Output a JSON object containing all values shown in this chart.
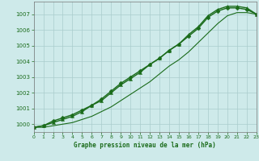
{
  "title": "Graphe pression niveau de la mer (hPa)",
  "background_color": "#ceeaea",
  "grid_color": "#aacccc",
  "line_color": "#1a6b1a",
  "xlim": [
    0,
    23
  ],
  "ylim": [
    999.5,
    1007.8
  ],
  "yticks": [
    1000,
    1001,
    1002,
    1003,
    1004,
    1005,
    1006,
    1007
  ],
  "xticks": [
    0,
    1,
    2,
    3,
    4,
    5,
    6,
    7,
    8,
    9,
    10,
    11,
    12,
    13,
    14,
    15,
    16,
    17,
    18,
    19,
    20,
    21,
    22,
    23
  ],
  "series": [
    {
      "x": [
        0,
        1,
        2,
        3,
        4,
        5,
        6,
        7,
        8,
        9,
        10,
        11,
        12,
        13,
        14,
        15,
        16,
        17,
        18,
        19,
        20,
        21,
        22,
        23
      ],
      "y": [
        999.8,
        999.9,
        1000.2,
        1000.4,
        1000.6,
        1000.9,
        1001.2,
        1001.6,
        1002.1,
        1002.6,
        1003.0,
        1003.4,
        1003.8,
        1004.2,
        1004.7,
        1005.1,
        1005.6,
        1006.1,
        1006.8,
        1007.2,
        1007.4,
        1007.4,
        1007.3,
        1007.0
      ],
      "marker": "D",
      "markersize": 2.5,
      "linewidth": 1.0
    },
    {
      "x": [
        0,
        1,
        2,
        3,
        4,
        5,
        6,
        7,
        8,
        9,
        10,
        11,
        12,
        13,
        14,
        15,
        16,
        17,
        18,
        19,
        20,
        21,
        22,
        23
      ],
      "y": [
        999.8,
        999.9,
        1000.1,
        1000.3,
        1000.5,
        1000.8,
        1001.2,
        1001.5,
        1002.0,
        1002.5,
        1002.9,
        1003.3,
        1003.8,
        1004.2,
        1004.7,
        1005.1,
        1005.7,
        1006.2,
        1006.9,
        1007.3,
        1007.5,
        1007.5,
        1007.4,
        1007.0
      ],
      "marker": "^",
      "markersize": 3.0,
      "linewidth": 1.0
    },
    {
      "x": [
        0,
        1,
        2,
        3,
        4,
        5,
        6,
        7,
        8,
        9,
        10,
        11,
        12,
        13,
        14,
        15,
        16,
        17,
        18,
        19,
        20,
        21,
        22,
        23
      ],
      "y": [
        999.8,
        999.8,
        999.9,
        1000.0,
        1000.1,
        1000.3,
        1000.5,
        1000.8,
        1001.1,
        1001.5,
        1001.9,
        1002.3,
        1002.7,
        1003.2,
        1003.7,
        1004.1,
        1004.6,
        1005.2,
        1005.8,
        1006.4,
        1006.9,
        1007.1,
        1007.1,
        1007.0
      ],
      "marker": null,
      "markersize": 0,
      "linewidth": 0.8
    }
  ]
}
